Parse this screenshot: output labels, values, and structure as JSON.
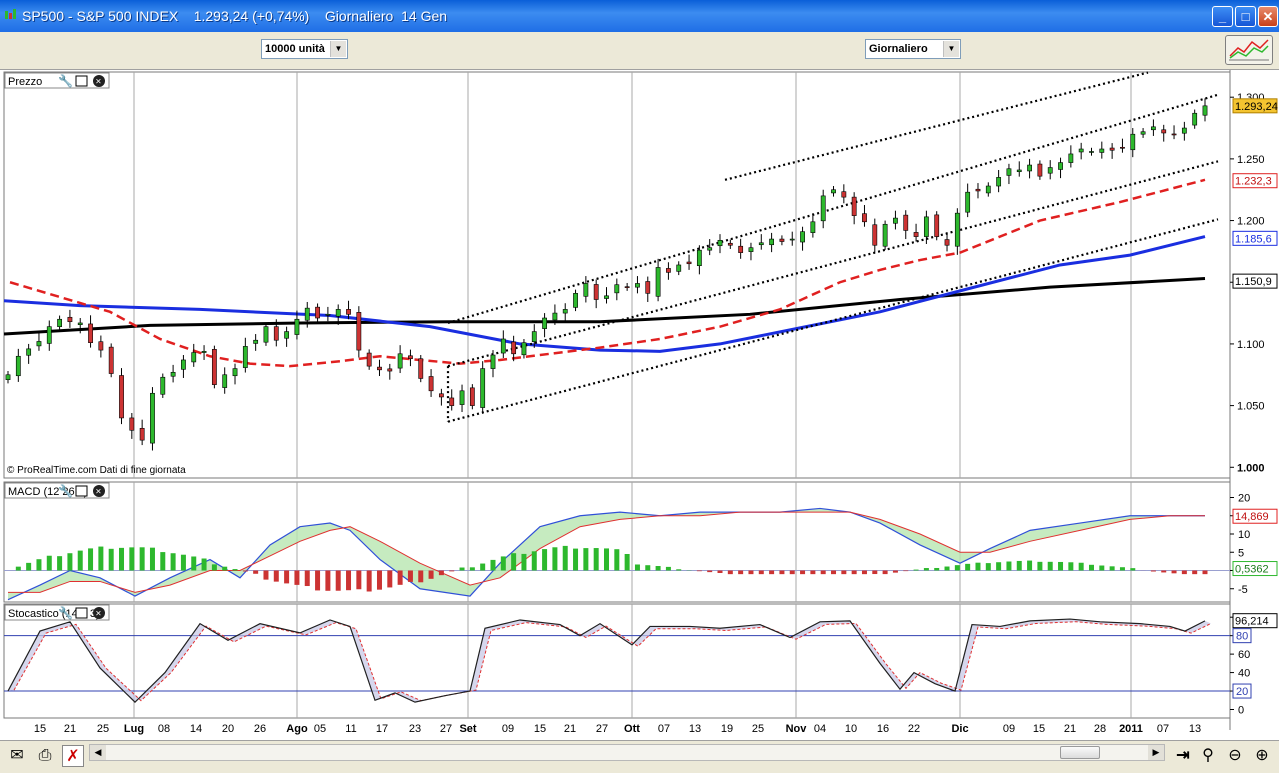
{
  "window": {
    "title": "SP500 - S&P 500 INDEX    1.293,24 (+0,74%)    Giornaliero  14 Gen",
    "buttons": [
      "_",
      "□",
      "✕"
    ]
  },
  "toolbar": {
    "units_label": "10000 unità",
    "period_label": "Giornaliero"
  },
  "price_panel": {
    "label": "Prezzo",
    "credit": "© ProRealTime.com  Dati di fine giornata",
    "y_ticks": [
      "1.300",
      "1.250",
      "1.200",
      "1.150",
      "1.100",
      "1.050",
      "1.000"
    ],
    "badges": {
      "last": "1.293,24",
      "ma_red": "1.232,3",
      "ma_blue": "1.185,6",
      "ma_black": "1.150,9"
    }
  },
  "macd_panel": {
    "label": "MACD (12 26 9)",
    "y_ticks": [
      "20",
      "15",
      "10",
      "5",
      "0",
      "-5"
    ],
    "badges": {
      "macd": "14,869",
      "hist": "0,5362"
    }
  },
  "stoch_panel": {
    "label": "Stocastico (14 3 3)",
    "y_ticks": [
      "100",
      "80",
      "60",
      "40",
      "20",
      "0"
    ],
    "badges": {
      "k": "96,214",
      "upper": "80",
      "lower": "20"
    }
  },
  "x_axis": {
    "labels": [
      "15",
      "21",
      "25",
      "Lug",
      "08",
      "14",
      "20",
      "26",
      "Ago",
      "05",
      "11",
      "17",
      "23",
      "27",
      "Set",
      "09",
      "15",
      "21",
      "27",
      "Ott",
      "07",
      "13",
      "19",
      "25",
      "Nov",
      "04",
      "10",
      "16",
      "22",
      "Dic",
      "09",
      "15",
      "21",
      "28",
      "2011",
      "07",
      "13"
    ],
    "bold": [
      "Lug",
      "Ago",
      "Set",
      "Ott",
      "Nov",
      "Dic",
      "2011"
    ]
  },
  "colors": {
    "bull": "#2db82d",
    "bear": "#cc3333",
    "ma_red": "#e02020",
    "ma_blue": "#1a2ee0",
    "ma_black": "#000000",
    "macd_line": "#3050d8",
    "signal_line": "#e03030",
    "stoch_k": "#202020",
    "stoch_d": "#e03030"
  },
  "chart_data": {
    "type": "candlestick",
    "title": "SP500 - S&P 500 INDEX",
    "ylim": [
      1000,
      1320
    ],
    "channel_lines": [
      {
        "style": "dotted",
        "from": [
          "2010-08-27",
          1117
        ],
        "to": [
          "2011-01-14",
          1302
        ]
      },
      {
        "style": "dotted",
        "from": [
          "2010-08-27",
          1082
        ],
        "to": [
          "2011-01-14",
          1248
        ]
      },
      {
        "style": "dotted",
        "from": [
          "2010-08-27",
          1037
        ],
        "to": [
          "2011-01-14",
          1201
        ]
      },
      {
        "style": "dotted",
        "from": [
          "2010-08-27",
          1160
        ],
        "to": [
          "2011-01-14",
          1340
        ]
      }
    ],
    "closes": [
      1075,
      1090,
      1096,
      1102,
      1114,
      1120,
      1118,
      1117,
      1101,
      1095,
      1076,
      1040,
      1030,
      1022,
      1060,
      1073,
      1077,
      1087,
      1093,
      1094,
      1067,
      1075,
      1080,
      1098,
      1103,
      1114,
      1103,
      1110,
      1120,
      1129,
      1121,
      1124,
      1128,
      1124,
      1095,
      1082,
      1079,
      1078,
      1092,
      1088,
      1072,
      1062,
      1057,
      1050,
      1062,
      1050,
      1080,
      1091,
      1104,
      1092,
      1101,
      1110,
      1121,
      1125,
      1128,
      1141,
      1149,
      1136,
      1139,
      1148,
      1146,
      1149,
      1141,
      1162,
      1158,
      1164,
      1165,
      1176,
      1178,
      1184,
      1180,
      1174,
      1178,
      1182,
      1185,
      1183,
      1185,
      1191,
      1199,
      1220,
      1225,
      1219,
      1204,
      1199,
      1180,
      1197,
      1202,
      1192,
      1187,
      1203,
      1187,
      1180,
      1206,
      1223,
      1224,
      1228,
      1235,
      1242,
      1241,
      1245,
      1236,
      1243,
      1247,
      1254,
      1258,
      1256,
      1258,
      1257,
      1259,
      1270,
      1272,
      1276,
      1271,
      1270,
      1275,
      1287,
      1293
    ]
  }
}
